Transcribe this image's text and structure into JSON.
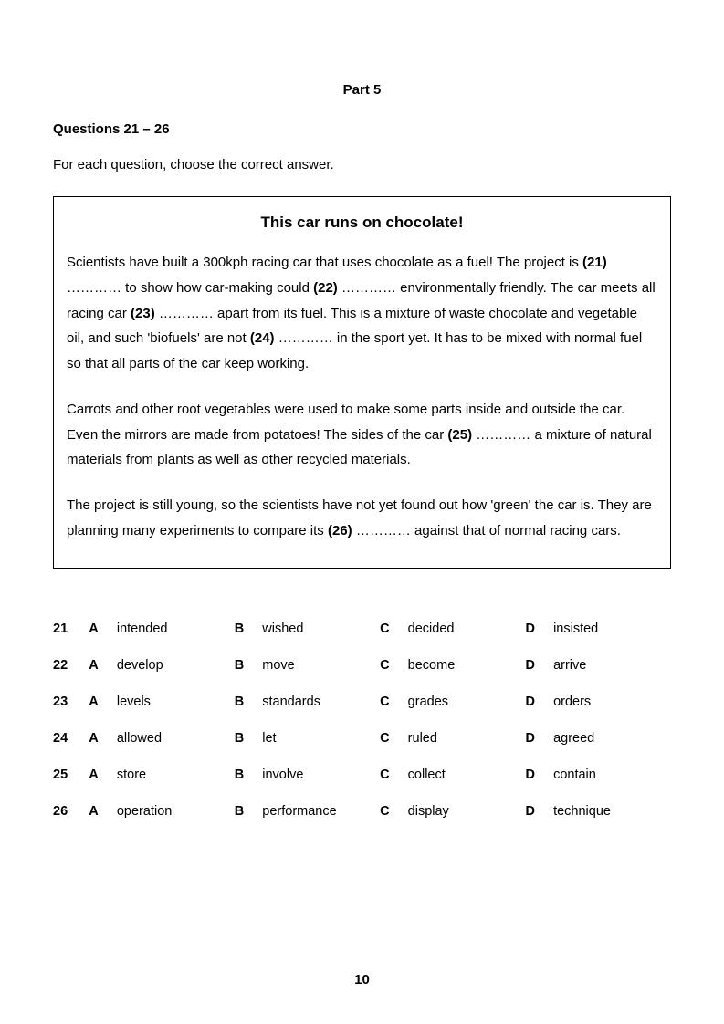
{
  "header": {
    "part_label": "Part 5",
    "questions_range": "Questions 21 – 26",
    "instruction": "For each question, choose the correct answer."
  },
  "passage": {
    "title": "This car runs on chocolate!",
    "p1_a": "Scientists have built a 300kph racing car that uses chocolate as a fuel! The project is ",
    "b21": "(21)",
    "p1_b": " ………… to show how car-making could ",
    "b22": "(22)",
    "p1_c": " ………… environmentally friendly. The car meets all racing car ",
    "b23": "(23)",
    "p1_d": " ………… apart from its fuel. This is a mixture of waste chocolate and vegetable oil, and such 'biofuels' are not ",
    "b24": "(24)",
    "p1_e": " ………… in the sport yet. It has to be mixed with normal fuel so that all parts of the car keep working.",
    "p2_a": "Carrots and other root vegetables were used to make some parts inside and outside the car. Even the mirrors are made from potatoes! The sides of the car ",
    "b25": "(25)",
    "p2_b": " ………… a mixture of natural materials from plants as well as other recycled materials.",
    "p3_a": "The project is still young, so the scientists have not yet found out how 'green' the car is. They are planning many experiments to compare its ",
    "b26": "(26)",
    "p3_b": " ………… against that of normal racing cars."
  },
  "option_letters": {
    "a": "A",
    "b": "B",
    "c": "C",
    "d": "D"
  },
  "questions": [
    {
      "num": "21",
      "a": "intended",
      "b": "wished",
      "c": "decided",
      "d": "insisted"
    },
    {
      "num": "22",
      "a": "develop",
      "b": "move",
      "c": "become",
      "d": "arrive"
    },
    {
      "num": "23",
      "a": "levels",
      "b": "standards",
      "c": "grades",
      "d": "orders"
    },
    {
      "num": "24",
      "a": "allowed",
      "b": "let",
      "c": "ruled",
      "d": "agreed"
    },
    {
      "num": "25",
      "a": "store",
      "b": "involve",
      "c": "collect",
      "d": "contain"
    },
    {
      "num": "26",
      "a": "operation",
      "b": "performance",
      "c": "display",
      "d": "technique"
    }
  ],
  "page_number": "10"
}
